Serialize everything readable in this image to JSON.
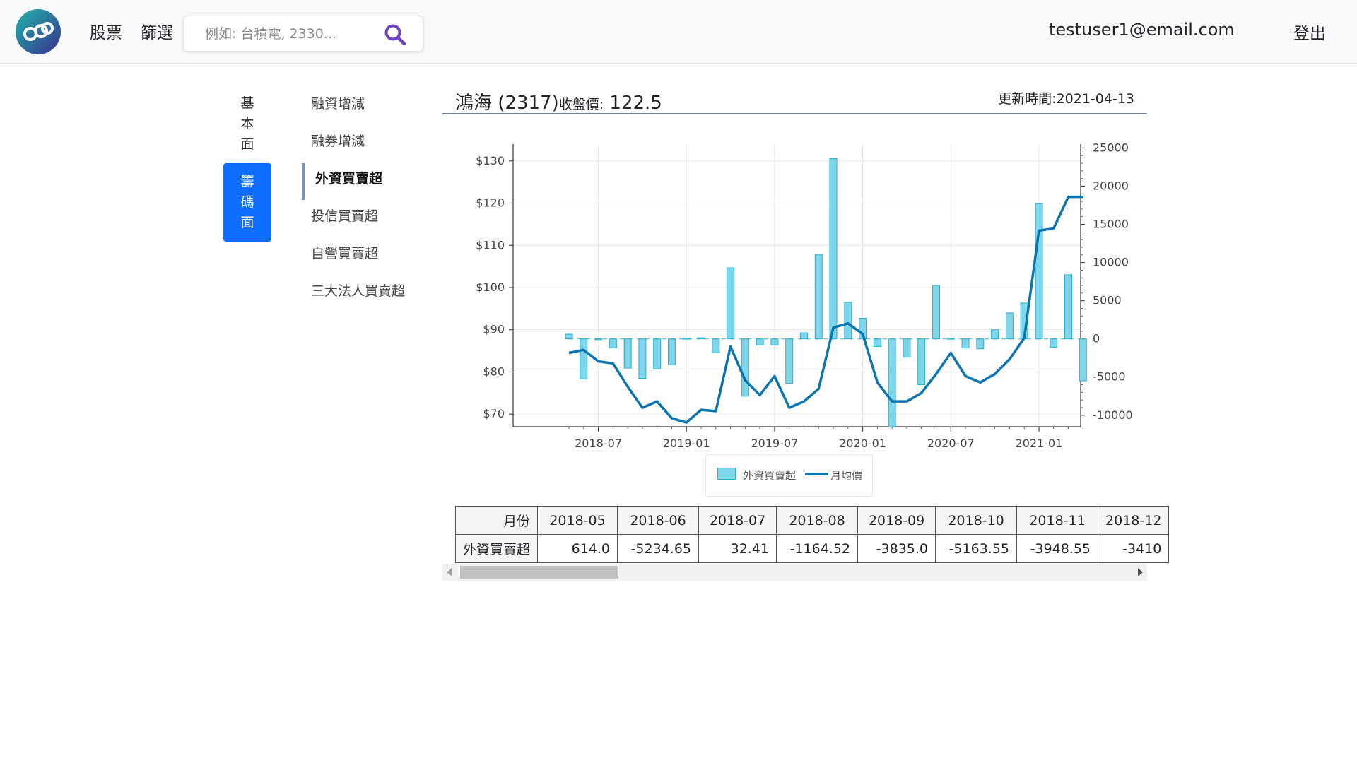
{
  "header": {
    "nav": [
      {
        "label": "股票"
      },
      {
        "label": "篩選"
      }
    ],
    "search_placeholder": "例如: 台積電, 2330...",
    "user_email": "testuser1@email.com",
    "logout_label": "登出",
    "colors": {
      "accent": "#0d6efd",
      "search_icon": "#6f42c1"
    }
  },
  "side_tabs": [
    {
      "label": "基本面",
      "active": false
    },
    {
      "label": "籌碼面",
      "active": true
    }
  ],
  "sub_nav": [
    {
      "label": "融資增減",
      "active": false
    },
    {
      "label": "融券增減",
      "active": false
    },
    {
      "label": "外資買賣超",
      "active": true
    },
    {
      "label": "投信買賣超",
      "active": false
    },
    {
      "label": "自營買賣超",
      "active": false
    },
    {
      "label": "三大法人買賣超",
      "active": false
    }
  ],
  "stock": {
    "name": "鴻海 (2317)",
    "price_label": "收盤價:",
    "price": "122.5",
    "update_time": "更新時間:2021-04-13"
  },
  "chart_data": {
    "type": "bar+line",
    "title": "",
    "x": [
      "2018-05",
      "2018-06",
      "2018-07",
      "2018-08",
      "2018-09",
      "2018-10",
      "2018-11",
      "2018-12",
      "2019-01",
      "2019-02",
      "2019-03",
      "2019-04",
      "2019-05",
      "2019-06",
      "2019-07",
      "2019-08",
      "2019-09",
      "2019-10",
      "2019-11",
      "2019-12",
      "2020-01",
      "2020-02",
      "2020-03",
      "2020-04",
      "2020-05",
      "2020-06",
      "2020-07",
      "2020-08",
      "2020-09",
      "2020-10",
      "2020-11",
      "2020-12",
      "2021-01",
      "2021-02",
      "2021-03",
      "2021-04"
    ],
    "x_tick_labels": [
      "2018-07",
      "2019-01",
      "2019-07",
      "2020-01",
      "2020-07",
      "2021-01"
    ],
    "series": [
      {
        "name": "外資買賣超",
        "type": "bar",
        "axis": "right",
        "color": "#7fd5ea",
        "values": [
          614.0,
          -5234.65,
          32.41,
          -1164.52,
          -3835.0,
          -5163.55,
          -3948.55,
          -3410,
          100,
          150,
          -1800,
          9300,
          -7500,
          -800,
          -800,
          -5800,
          800,
          11000,
          23600,
          4800,
          2700,
          -1000,
          -11500,
          -2400,
          -6000,
          7000,
          100,
          -1200,
          -1300,
          1200,
          3400,
          4700,
          17700,
          -1100,
          8400,
          -5500
        ]
      },
      {
        "name": "月均價",
        "type": "line",
        "axis": "left",
        "color": "#0b75b2",
        "values": [
          84.5,
          85.2,
          82.5,
          82.0,
          76.5,
          71.5,
          73.0,
          69.0,
          68.0,
          71.0,
          70.7,
          86.0,
          78.0,
          74.5,
          79.0,
          71.5,
          73.0,
          76.0,
          90.5,
          91.5,
          89.0,
          77.5,
          73.0,
          73.0,
          75.0,
          79.5,
          84.5,
          79.0,
          77.5,
          79.5,
          83.0,
          88.0,
          113.5,
          114.0,
          121.5,
          121.5
        ]
      }
    ],
    "y_left": {
      "ticks": [
        "$70",
        "$80",
        "$90",
        "$100",
        "$110",
        "$120",
        "$130"
      ],
      "range": [
        67,
        134
      ]
    },
    "y_right": {
      "ticks": [
        "25000",
        "20000",
        "15000",
        "10000",
        "5000",
        "0",
        "-5000",
        "-10000"
      ],
      "range": [
        -11500,
        25500
      ]
    },
    "grid": true,
    "legend_position": "bottom-center"
  },
  "table": {
    "row_header_month": "月份",
    "row_header_value": "外資買賣超",
    "months": [
      "2018-05",
      "2018-06",
      "2018-07",
      "2018-08",
      "2018-09",
      "2018-10",
      "2018-11",
      "2018-12"
    ],
    "values": [
      "614.0",
      "-5234.65",
      "32.41",
      "-1164.52",
      "-3835.0",
      "-5163.55",
      "-3948.55",
      "-3410"
    ]
  }
}
